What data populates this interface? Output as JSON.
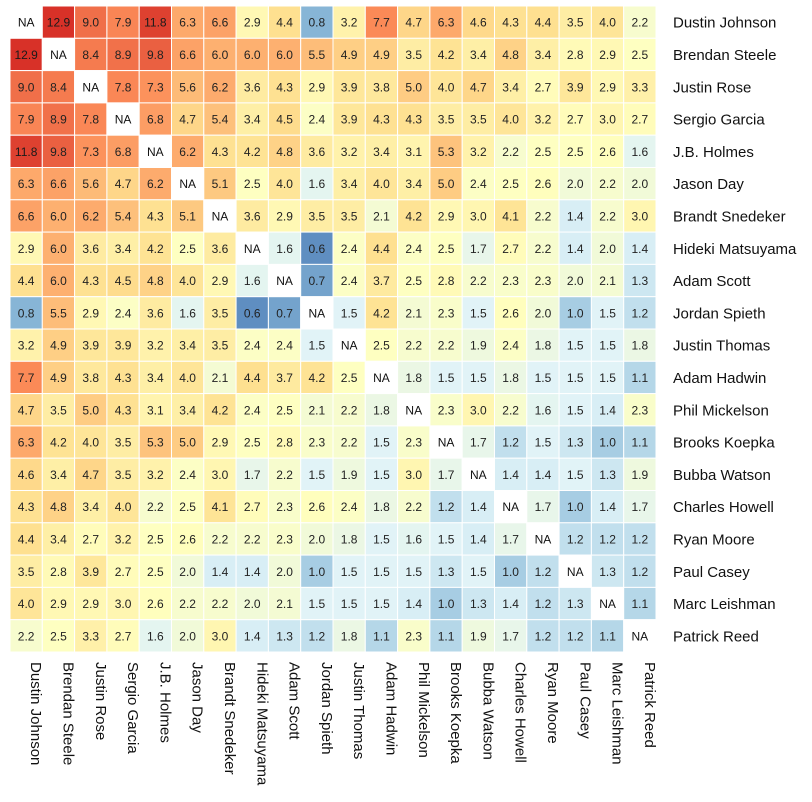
{
  "chart_data": {
    "type": "heatmap",
    "labels": [
      "Dustin Johnson",
      "Brendan Steele",
      "Justin Rose",
      "Sergio Garcia",
      "J.B. Holmes",
      "Jason Day",
      "Brandt Snedeker",
      "Hideki Matsuyama",
      "Adam Scott",
      "Jordan Spieth",
      "Justin Thomas",
      "Adam Hadwin",
      "Phil Mickelson",
      "Brooks Koepka",
      "Bubba Watson",
      "Charles Howell",
      "Ryan Moore",
      "Paul Casey",
      "Marc Leishman",
      "Patrick Reed"
    ],
    "missing_label": "NA",
    "values": [
      [
        null,
        12.9,
        9.0,
        7.9,
        11.8,
        6.3,
        6.6,
        2.9,
        4.4,
        0.8,
        3.2,
        7.7,
        4.7,
        6.3,
        4.6,
        4.3,
        4.4,
        3.5,
        4.0,
        2.2
      ],
      [
        12.9,
        null,
        8.4,
        8.9,
        9.8,
        6.6,
        6.0,
        6.0,
        6.0,
        5.5,
        4.9,
        4.9,
        3.5,
        4.2,
        3.4,
        4.8,
        3.4,
        2.8,
        2.9,
        2.5
      ],
      [
        9.0,
        8.4,
        null,
        7.8,
        7.3,
        5.6,
        6.2,
        3.6,
        4.3,
        2.9,
        3.9,
        3.8,
        5.0,
        4.0,
        4.7,
        3.4,
        2.7,
        3.9,
        2.9,
        3.3
      ],
      [
        7.9,
        8.9,
        7.8,
        null,
        6.8,
        4.7,
        5.4,
        3.4,
        4.5,
        2.4,
        3.9,
        4.3,
        4.3,
        3.5,
        3.5,
        4.0,
        3.2,
        2.7,
        3.0,
        2.7
      ],
      [
        11.8,
        9.8,
        7.3,
        6.8,
        null,
        6.2,
        4.3,
        4.2,
        4.8,
        3.6,
        3.2,
        3.4,
        3.1,
        5.3,
        3.2,
        2.2,
        2.5,
        2.5,
        2.6,
        1.6
      ],
      [
        6.3,
        6.6,
        5.6,
        4.7,
        6.2,
        null,
        5.1,
        2.5,
        4.0,
        1.6,
        3.4,
        4.0,
        3.4,
        5.0,
        2.4,
        2.5,
        2.6,
        2.0,
        2.2,
        2.0
      ],
      [
        6.6,
        6.0,
        6.2,
        5.4,
        4.3,
        5.1,
        null,
        3.6,
        2.9,
        3.5,
        3.5,
        2.1,
        4.2,
        2.9,
        3.0,
        4.1,
        2.2,
        1.4,
        2.2,
        3.0
      ],
      [
        2.9,
        6.0,
        3.6,
        3.4,
        4.2,
        2.5,
        3.6,
        null,
        1.6,
        0.6,
        2.4,
        4.4,
        2.4,
        2.5,
        1.7,
        2.7,
        2.2,
        1.4,
        2.0,
        1.4
      ],
      [
        4.4,
        6.0,
        4.3,
        4.5,
        4.8,
        4.0,
        2.9,
        1.6,
        null,
        0.7,
        2.4,
        3.7,
        2.5,
        2.8,
        2.2,
        2.3,
        2.3,
        2.0,
        2.1,
        1.3
      ],
      [
        0.8,
        5.5,
        2.9,
        2.4,
        3.6,
        1.6,
        3.5,
        0.6,
        0.7,
        null,
        1.5,
        4.2,
        2.1,
        2.3,
        1.5,
        2.6,
        2.0,
        1.0,
        1.5,
        1.2
      ],
      [
        3.2,
        4.9,
        3.9,
        3.9,
        3.2,
        3.4,
        3.5,
        2.4,
        2.4,
        1.5,
        null,
        2.5,
        2.2,
        2.2,
        1.9,
        2.4,
        1.8,
        1.5,
        1.5,
        1.8
      ],
      [
        7.7,
        4.9,
        3.8,
        4.3,
        3.4,
        4.0,
        2.1,
        4.4,
        3.7,
        4.2,
        2.5,
        null,
        1.8,
        1.5,
        1.5,
        1.8,
        1.5,
        1.5,
        1.5,
        1.1
      ],
      [
        4.7,
        3.5,
        5.0,
        4.3,
        3.1,
        3.4,
        4.2,
        2.4,
        2.5,
        2.1,
        2.2,
        1.8,
        null,
        2.3,
        3.0,
        2.2,
        1.6,
        1.5,
        1.4,
        2.3
      ],
      [
        6.3,
        4.2,
        4.0,
        3.5,
        5.3,
        5.0,
        2.9,
        2.5,
        2.8,
        2.3,
        2.2,
        1.5,
        2.3,
        null,
        1.7,
        1.2,
        1.5,
        1.3,
        1.0,
        1.1
      ],
      [
        4.6,
        3.4,
        4.7,
        3.5,
        3.2,
        2.4,
        3.0,
        1.7,
        2.2,
        1.5,
        1.9,
        1.5,
        3.0,
        1.7,
        null,
        1.4,
        1.4,
        1.5,
        1.3,
        1.9
      ],
      [
        4.3,
        4.8,
        3.4,
        4.0,
        2.2,
        2.5,
        4.1,
        2.7,
        2.3,
        2.6,
        2.4,
        1.8,
        2.2,
        1.2,
        1.4,
        null,
        1.7,
        1.0,
        1.4,
        1.7
      ],
      [
        4.4,
        3.4,
        2.7,
        3.2,
        2.5,
        2.6,
        2.2,
        2.2,
        2.3,
        2.0,
        1.8,
        1.5,
        1.6,
        1.5,
        1.4,
        1.7,
        null,
        1.2,
        1.2,
        1.2
      ],
      [
        3.5,
        2.8,
        3.9,
        2.7,
        2.5,
        2.0,
        1.4,
        1.4,
        2.0,
        1.0,
        1.5,
        1.5,
        1.5,
        1.3,
        1.5,
        1.0,
        1.2,
        null,
        1.3,
        1.2
      ],
      [
        4.0,
        2.9,
        2.9,
        3.0,
        2.6,
        2.2,
        2.2,
        2.0,
        2.1,
        1.5,
        1.5,
        1.5,
        1.4,
        1.0,
        1.3,
        1.4,
        1.2,
        1.3,
        null,
        1.1
      ],
      [
        2.2,
        2.5,
        3.3,
        2.7,
        1.6,
        2.0,
        3.0,
        1.4,
        1.3,
        1.2,
        1.8,
        1.1,
        2.3,
        1.1,
        1.9,
        1.7,
        1.2,
        1.2,
        1.1,
        null
      ]
    ],
    "color_scale": [
      "#4575b4",
      "#91bfdb",
      "#e0f3f8",
      "#ffffbf",
      "#fee090",
      "#fc8d59",
      "#d73027"
    ],
    "na_color": "#ffffff"
  }
}
